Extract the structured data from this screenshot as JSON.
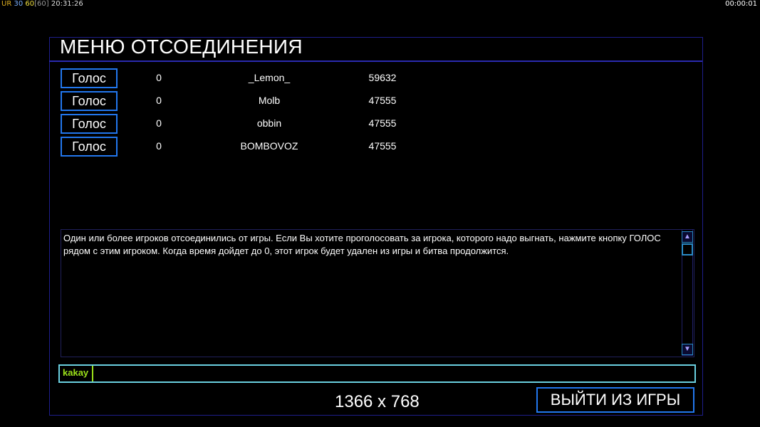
{
  "hud": {
    "ur": "UR",
    "n1": "30",
    "n2": "60",
    "n3": "[60]",
    "clock": "20:31:26",
    "timer": "00:00:01"
  },
  "title": "МЕНЮ ОТСОЕДИНЕНИЯ",
  "players": [
    {
      "vote_label": "Голос",
      "votes": "0",
      "name": "_Lemon_",
      "score": "59632"
    },
    {
      "vote_label": "Голос",
      "votes": "0",
      "name": "Molb",
      "score": "47555"
    },
    {
      "vote_label": "Голос",
      "votes": "0",
      "name": "obbin",
      "score": "47555"
    },
    {
      "vote_label": "Голос",
      "votes": "0",
      "name": "BOMBOVOZ",
      "score": "47555"
    }
  ],
  "message": "Один или более игроков отсоединились от игры. Если Вы хотите проголосовать за игрока, которого надо выгнать, нажмите  кнопку ГОЛОС рядом с этим игроком. Когда время дойдет до 0, этот игрок будет удален из игры и битва продолжится.",
  "chat": {
    "name": "kakay",
    "value": ""
  },
  "resolution": "1366 x 768",
  "exit_label": "ВЫЙТИ ИЗ ИГРЫ",
  "colors": {
    "accent": "#2277ee",
    "frame": "#1e1e8c",
    "chat_name": "#9be01a",
    "chat_border": "#6ad0e0"
  }
}
